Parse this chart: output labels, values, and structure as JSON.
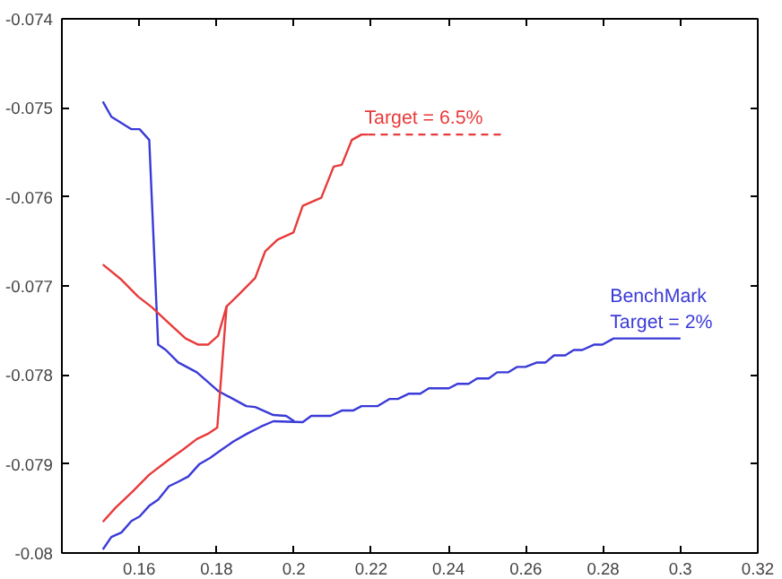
{
  "chart_data": {
    "type": "line",
    "xlim": [
      0.14,
      0.32
    ],
    "ylim": [
      -0.08,
      -0.074
    ],
    "xticks": [
      0.16,
      0.18,
      0.2,
      0.22,
      0.24,
      0.26,
      0.28,
      0.3,
      0.32
    ],
    "yticks": [
      -0.08,
      -0.079,
      -0.078,
      -0.077,
      -0.076,
      -0.075,
      -0.074
    ],
    "grid": false,
    "marker": "none",
    "series": [
      {
        "color": "#3a3ad8",
        "line_style": "solid",
        "x": [
          0.1506,
          0.1528,
          0.1554,
          0.158,
          0.1601,
          0.1626,
          0.1649,
          0.1669,
          0.1701,
          0.1749,
          0.1773,
          0.1804,
          0.1843,
          0.1877,
          0.19,
          0.1947,
          0.198,
          0.2001
        ],
        "values": [
          -0.07493,
          -0.0751,
          -0.07517,
          -0.07524,
          -0.07524,
          -0.07536,
          -0.07766,
          -0.07772,
          -0.07786,
          -0.07797,
          -0.07806,
          -0.07818,
          -0.07827,
          -0.07835,
          -0.07836,
          -0.07845,
          -0.07846,
          -0.07852
        ]
      },
      {
        "color": "#3a3ad8",
        "line_style": "solid",
        "x": [
          0.1506,
          0.1528,
          0.1554,
          0.158,
          0.1601,
          0.1626,
          0.1649,
          0.1677,
          0.1701,
          0.1727,
          0.1756,
          0.1784,
          0.1813,
          0.1843,
          0.1879,
          0.1915,
          0.1947,
          0.2023,
          0.2045,
          0.2095,
          0.2124,
          0.2153,
          0.2175,
          0.2217,
          0.2247,
          0.2269,
          0.2298,
          0.2327,
          0.2349,
          0.2401,
          0.2423,
          0.2452,
          0.2474,
          0.2504,
          0.2526,
          0.2555,
          0.2577,
          0.2599,
          0.2629,
          0.2651,
          0.2673,
          0.2702,
          0.2724,
          0.2746,
          0.2776,
          0.2798,
          0.2827,
          0.3
        ],
        "values": [
          -0.07996,
          -0.07982,
          -0.07977,
          -0.07964,
          -0.07959,
          -0.07947,
          -0.0794,
          -0.07925,
          -0.0792,
          -0.07914,
          -0.079,
          -0.07893,
          -0.07884,
          -0.07875,
          -0.07866,
          -0.07858,
          -0.07852,
          -0.07853,
          -0.07846,
          -0.07846,
          -0.0784,
          -0.0784,
          -0.07835,
          -0.07835,
          -0.07827,
          -0.07827,
          -0.07821,
          -0.07821,
          -0.07815,
          -0.07815,
          -0.0781,
          -0.0781,
          -0.07804,
          -0.07804,
          -0.07797,
          -0.07797,
          -0.07791,
          -0.07791,
          -0.07786,
          -0.07786,
          -0.07778,
          -0.07778,
          -0.07772,
          -0.07772,
          -0.07766,
          -0.07766,
          -0.07759,
          -0.07759
        ]
      },
      {
        "color": "#e83a3a",
        "line_style": "solid",
        "x": [
          0.1506,
          0.1554,
          0.1597,
          0.1633,
          0.1677,
          0.172,
          0.1753,
          0.1778,
          0.1804,
          0.1826,
          0.1857,
          0.19,
          0.1926,
          0.1958,
          0.1999,
          0.2023,
          0.2071,
          0.2103,
          0.2124,
          0.215,
          0.2175,
          0.2192
        ],
        "values": [
          -0.07676,
          -0.07693,
          -0.07712,
          -0.07724,
          -0.07742,
          -0.07759,
          -0.07766,
          -0.07766,
          -0.07756,
          -0.07723,
          -0.0771,
          -0.07691,
          -0.07661,
          -0.07648,
          -0.0764,
          -0.0761,
          -0.07601,
          -0.07566,
          -0.07564,
          -0.07536,
          -0.0753,
          -0.0753
        ]
      },
      {
        "color": "#e83a3a",
        "line_style": "solid",
        "x": [
          0.1506,
          0.1539,
          0.1583,
          0.1626,
          0.1677,
          0.1713,
          0.1749,
          0.1778,
          0.1802,
          0.1826
        ],
        "values": [
          -0.07965,
          -0.07949,
          -0.07931,
          -0.07912,
          -0.07895,
          -0.07884,
          -0.07872,
          -0.07866,
          -0.07859,
          -0.07723
        ]
      },
      {
        "color": "#e83a3a",
        "line_style": "dashed",
        "x": [
          0.2192,
          0.2544
        ],
        "values": [
          -0.0753,
          -0.0753
        ]
      }
    ],
    "annotations": [
      {
        "text": "Target = 6.5%",
        "x": 0.2192,
        "y": -0.0753
      },
      {
        "text": "BenchMark\nTarget = 2%",
        "x": 0.2827,
        "y": -0.07759
      }
    ]
  }
}
